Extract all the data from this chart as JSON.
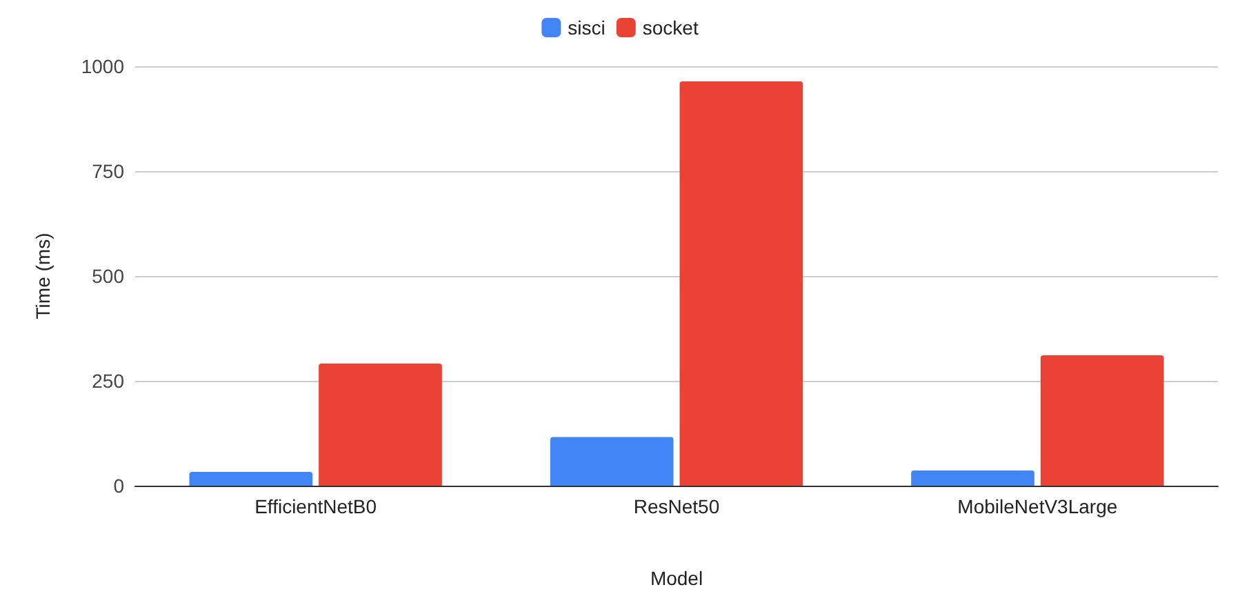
{
  "chart_data": {
    "type": "bar",
    "xlabel": "Model",
    "ylabel": "Time (ms)",
    "categories": [
      "EfficientNetB0",
      "ResNet50",
      "MobileNetV3Large"
    ],
    "series": [
      {
        "name": "sisci",
        "color": "#4285f4",
        "values": [
          33,
          116,
          36
        ]
      },
      {
        "name": "socket",
        "color": "#ea4335",
        "values": [
          291,
          964,
          311
        ]
      }
    ],
    "ylim": [
      0,
      1000
    ],
    "yticks": [
      0,
      250,
      500,
      750,
      1000
    ],
    "grid": "y",
    "legend": "top"
  }
}
